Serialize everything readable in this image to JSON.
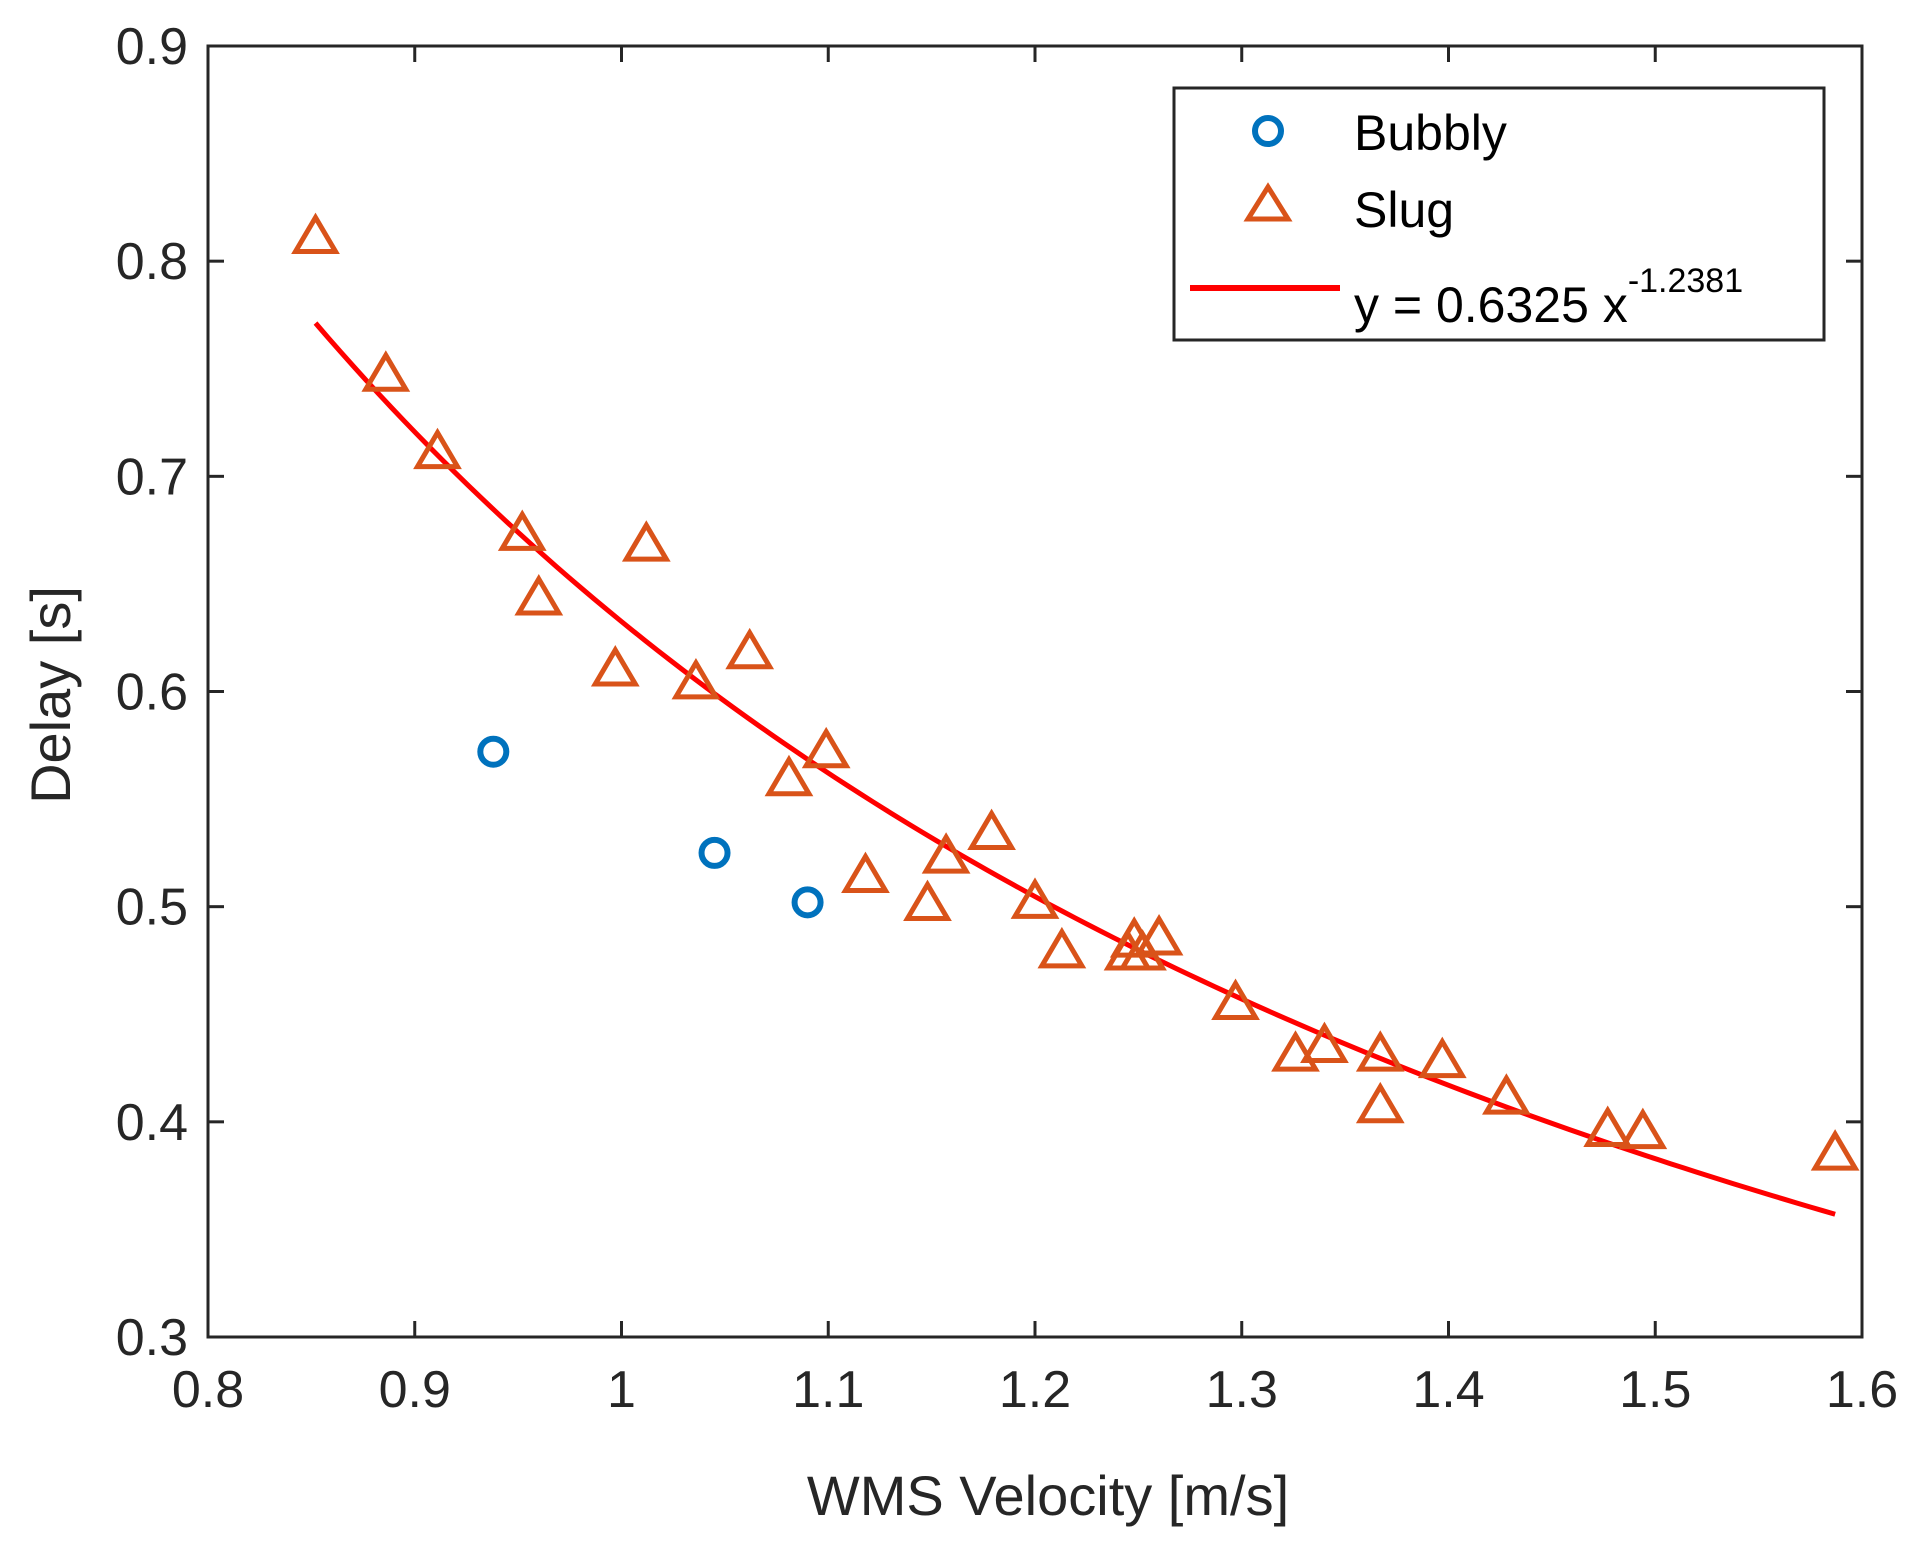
{
  "chart_data": {
    "type": "scatter",
    "title": "",
    "xlabel": "WMS Velocity [m/s]",
    "ylabel": "Delay [s]",
    "xlim": [
      0.8,
      1.6
    ],
    "ylim": [
      0.3,
      0.9
    ],
    "x_ticks": [
      "0.8",
      "0.9",
      "1",
      "1.1",
      "1.2",
      "1.3",
      "1.4",
      "1.5",
      "1.6"
    ],
    "y_ticks": [
      "0.3",
      "0.4",
      "0.5",
      "0.6",
      "0.7",
      "0.8",
      "0.9"
    ],
    "grid": false,
    "legend_position": "top-right",
    "series": [
      {
        "name": "Bubbly",
        "marker": "circle",
        "color": "#0072BD",
        "x": [
          0.938,
          1.045,
          1.09
        ],
        "y": [
          0.572,
          0.525,
          0.502
        ]
      },
      {
        "name": "Slug",
        "marker": "triangle",
        "color": "#D95319",
        "x": [
          0.852,
          0.886,
          0.911,
          0.952,
          0.96,
          0.997,
          1.012,
          1.036,
          1.062,
          1.081,
          1.099,
          1.118,
          1.148,
          1.157,
          1.179,
          1.2,
          1.213,
          1.245,
          1.248,
          1.252,
          1.26,
          1.297,
          1.326,
          1.34,
          1.367,
          1.367,
          1.397,
          1.428,
          1.477,
          1.494,
          1.587
        ],
        "y": [
          0.811,
          0.747,
          0.711,
          0.673,
          0.643,
          0.61,
          0.668,
          0.604,
          0.618,
          0.559,
          0.572,
          0.514,
          0.501,
          0.523,
          0.534,
          0.502,
          0.479,
          0.478,
          0.484,
          0.478,
          0.485,
          0.455,
          0.431,
          0.435,
          0.431,
          0.407,
          0.428,
          0.411,
          0.396,
          0.395,
          0.385
        ]
      }
    ],
    "fit": {
      "name": "y = 0.6325 x",
      "exponent_label": "-1.2381",
      "a": 0.6325,
      "b": -1.2381,
      "x_range": [
        0.852,
        1.587
      ],
      "color": "#FF0000"
    }
  }
}
